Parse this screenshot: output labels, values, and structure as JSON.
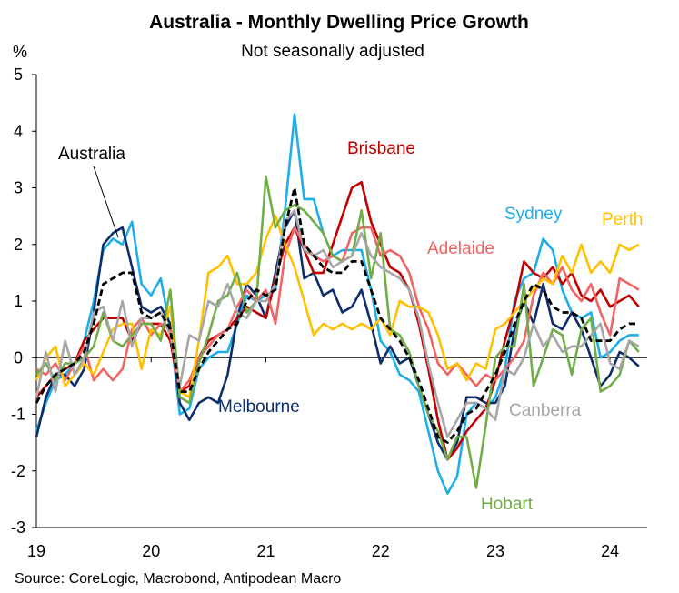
{
  "chart_data": {
    "type": "line",
    "title": "Australia - Monthly Dwelling Price Growth",
    "subtitle": "Not seasonally adjusted",
    "ylabel": "%",
    "xlabel": "",
    "source": "Source: CoreLogic, Macrobond, Antipodean Macro",
    "ylim": [
      -3,
      5
    ],
    "yticks": [
      5,
      4,
      3,
      2,
      1,
      0,
      -1,
      -2,
      -3
    ],
    "xticks": [
      "19",
      "20",
      "21",
      "22",
      "23",
      "24"
    ],
    "x_start": "Jan 2019",
    "frequency": "monthly",
    "grid": false,
    "series": [
      {
        "name": "Sydney",
        "color": "#1EAEE8",
        "dashed": false,
        "values": [
          -1.3,
          -0.8,
          -0.4,
          -0.3,
          -0.1,
          0.3,
          1.0,
          1.9,
          2.1,
          2.0,
          2.4,
          1.3,
          1.1,
          1.4,
          0.5,
          -1.0,
          -0.9,
          -0.2,
          0.0,
          0.1,
          0.1,
          0.6,
          1.1,
          1.0,
          1.1,
          1.2,
          2.6,
          4.3,
          2.8,
          2.8,
          2.2,
          1.8,
          1.9,
          1.9,
          1.9,
          1.2,
          0.3,
          0.1,
          -0.3,
          -0.4,
          -0.6,
          -1.3,
          -2.0,
          -2.4,
          -2.1,
          -1.0,
          -0.8,
          -0.9,
          -0.7,
          -0.2,
          1.0,
          1.4,
          1.5,
          2.1,
          1.9,
          1.2,
          0.8,
          0.7,
          0.8,
          0.0,
          0.1,
          0.3,
          0.4,
          0.4
        ]
      },
      {
        "name": "Melbourne",
        "color": "#0E2D6B",
        "dashed": false,
        "values": [
          -1.4,
          -0.7,
          -0.3,
          -0.3,
          -0.5,
          -0.2,
          0.8,
          2.0,
          2.2,
          2.3,
          1.6,
          0.9,
          0.8,
          0.9,
          0.6,
          -0.8,
          -1.1,
          -0.8,
          -0.7,
          -0.8,
          -0.3,
          0.7,
          1.3,
          1.1,
          0.7,
          1.5,
          2.3,
          2.6,
          1.4,
          1.5,
          1.1,
          1.2,
          0.8,
          0.9,
          1.2,
          0.6,
          -0.1,
          0.2,
          -0.1,
          0.0,
          -0.5,
          -1.0,
          -1.5,
          -1.8,
          -1.5,
          -0.7,
          -0.7,
          -0.8,
          -0.8,
          -0.5,
          0.5,
          1.0,
          0.6,
          1.3,
          0.6,
          0.5,
          0.8,
          0.5,
          0.0,
          -0.5,
          -0.3,
          0.1,
          0.0,
          -0.15
        ]
      },
      {
        "name": "Brisbane",
        "color": "#C00000",
        "dashed": false,
        "values": [
          -0.7,
          -0.5,
          -0.3,
          -0.2,
          -0.1,
          0.3,
          0.5,
          0.7,
          0.7,
          0.7,
          0.3,
          0.6,
          0.6,
          0.6,
          0.3,
          -0.6,
          -0.5,
          0.0,
          0.3,
          0.4,
          0.5,
          0.7,
          0.9,
          0.8,
          0.7,
          1.4,
          2.0,
          2.3,
          1.9,
          1.5,
          1.5,
          2.0,
          2.5,
          3.0,
          3.1,
          2.4,
          2.0,
          1.6,
          1.5,
          1.2,
          0.6,
          -0.2,
          -1.1,
          -1.8,
          -1.6,
          -1.3,
          -1.1,
          -0.9,
          -0.4,
          0.3,
          0.9,
          1.7,
          1.5,
          1.4,
          1.6,
          1.3,
          1.5,
          1.1,
          1.0,
          1.2,
          0.9,
          1.0,
          1.1,
          0.9
        ]
      },
      {
        "name": "Adelaide",
        "color": "#F26464",
        "dashed": false,
        "values": [
          -0.2,
          -0.3,
          -0.1,
          -0.4,
          -0.1,
          0.2,
          -0.4,
          -0.2,
          -0.4,
          -0.2,
          0.5,
          0.7,
          0.4,
          0.6,
          0.5,
          -0.6,
          -0.4,
          0.0,
          0.2,
          0.4,
          0.5,
          0.9,
          1.2,
          1.0,
          1.2,
          0.6,
          1.8,
          2.3,
          2.0,
          1.8,
          1.7,
          1.8,
          1.7,
          2.2,
          2.3,
          2.3,
          1.8,
          1.9,
          1.8,
          1.5,
          0.9,
          0.5,
          -0.1,
          -0.3,
          -0.1,
          -0.3,
          -0.5,
          -0.3,
          -0.4,
          -0.2,
          0.0,
          0.3,
          1.1,
          1.5,
          1.3,
          1.6,
          1.2,
          1.0,
          1.3,
          0.8,
          0.4,
          1.4,
          1.3,
          1.2
        ]
      },
      {
        "name": "Perth",
        "color": "#FFC000",
        "dashed": false,
        "values": [
          -0.4,
          0.0,
          0.2,
          -0.5,
          -0.3,
          -0.1,
          -0.3,
          0.1,
          0.5,
          0.6,
          0.6,
          -0.2,
          0.5,
          0.4,
          0.9,
          -0.6,
          -0.7,
          0.3,
          1.5,
          1.6,
          1.8,
          1.3,
          1.3,
          1.5,
          2.1,
          2.5,
          2.0,
          1.6,
          1.0,
          0.4,
          0.6,
          0.5,
          0.6,
          0.5,
          0.6,
          0.5,
          0.7,
          0.4,
          1.0,
          0.9,
          0.9,
          0.8,
          0.4,
          -0.2,
          -0.1,
          -0.4,
          -0.1,
          -0.2,
          0.5,
          0.6,
          0.8,
          1.0,
          1.2,
          1.4,
          1.3,
          1.8,
          1.5,
          2.0,
          1.5,
          1.7,
          1.5,
          2.0,
          1.9,
          2.0
        ]
      },
      {
        "name": "Hobart",
        "color": "#70AD47",
        "dashed": false,
        "values": [
          -0.3,
          -0.1,
          -0.4,
          -0.1,
          -0.1,
          0.0,
          0.2,
          0.8,
          0.3,
          0.2,
          0.4,
          0.6,
          0.6,
          0.3,
          1.2,
          -0.7,
          -0.8,
          -0.1,
          0.4,
          1.0,
          1.1,
          1.5,
          0.8,
          1.0,
          3.2,
          2.3,
          2.6,
          2.7,
          2.6,
          2.4,
          2.2,
          1.8,
          1.7,
          1.8,
          2.6,
          1.4,
          2.2,
          0.5,
          0.4,
          0.1,
          -0.5,
          -1.0,
          -1.3,
          -1.8,
          -1.4,
          -1.4,
          -2.3,
          -1.2,
          0.0,
          0.2,
          0.2,
          1.3,
          -0.5,
          0.0,
          0.5,
          0.4,
          -0.3,
          0.5,
          0.7,
          -0.6,
          -0.5,
          -0.3,
          0.3,
          0.1
        ]
      },
      {
        "name": "Canberra",
        "color": "#A6A6A6",
        "dashed": false,
        "values": [
          -0.7,
          0.1,
          -0.6,
          0.3,
          -0.3,
          0.0,
          0.8,
          0.9,
          0.3,
          1.0,
          0.2,
          0.7,
          0.7,
          0.8,
          0.4,
          -0.5,
          0.4,
          0.3,
          1.0,
          0.9,
          1.3,
          0.8,
          0.7,
          1.0,
          1.0,
          1.3,
          2.4,
          2.6,
          1.9,
          1.8,
          1.9,
          1.6,
          1.7,
          1.8,
          2.2,
          1.8,
          1.6,
          1.5,
          1.4,
          1.2,
          0.7,
          -0.1,
          -0.8,
          -1.4,
          -1.1,
          -0.8,
          -0.8,
          -0.9,
          -1.1,
          -0.2,
          -0.3,
          0.0,
          0.6,
          0.2,
          0.4,
          0.1,
          0.2,
          0.2,
          0.4,
          0.6,
          -0.1,
          -0.2,
          0.3,
          0.2
        ]
      },
      {
        "name": "Australia",
        "color": "#000000",
        "dashed": true,
        "values": [
          -0.8,
          -0.5,
          -0.3,
          -0.2,
          -0.1,
          0.1,
          0.6,
          1.3,
          1.4,
          1.5,
          1.5,
          0.8,
          0.7,
          0.8,
          0.5,
          -0.6,
          -0.6,
          -0.2,
          0.1,
          0.3,
          0.5,
          0.6,
          1.0,
          1.2,
          1.1,
          1.2,
          2.3,
          3.0,
          2.0,
          1.8,
          1.6,
          1.5,
          1.5,
          1.7,
          1.7,
          1.2,
          0.7,
          0.5,
          0.3,
          0.0,
          -0.4,
          -0.9,
          -1.4,
          -1.5,
          -1.3,
          -1.0,
          -0.9,
          -0.6,
          -0.3,
          0.1,
          0.6,
          1.0,
          1.3,
          1.2,
          0.9,
          0.8,
          0.8,
          0.7,
          0.3,
          0.3,
          0.3,
          0.5,
          0.6,
          0.6
        ]
      }
    ]
  }
}
